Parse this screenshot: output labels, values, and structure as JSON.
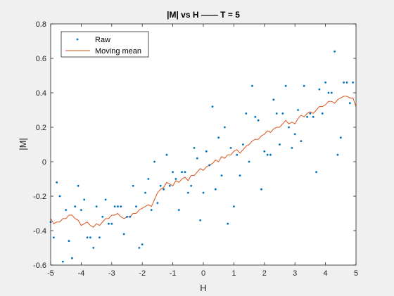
{
  "chart_data": {
    "type": "scatter",
    "title": "|M| vs H —— T = 5",
    "xlabel": "H",
    "ylabel": "|M|",
    "xlim": [
      -5,
      5
    ],
    "ylim": [
      -0.6,
      0.8
    ],
    "xticks": [
      -5,
      -4,
      -3,
      -2,
      -1,
      0,
      1,
      2,
      3,
      4,
      5
    ],
    "yticks": [
      -0.6,
      -0.4,
      -0.2,
      0,
      0.2,
      0.4,
      0.6,
      0.8
    ],
    "xtick_labels": [
      "-5",
      "-4",
      "-3",
      "-2",
      "-1",
      "0",
      "1",
      "2",
      "3",
      "4",
      "5"
    ],
    "ytick_labels": [
      "-0.6",
      "-0.4",
      "-0.2",
      "0",
      "0.2",
      "0.4",
      "0.6",
      "0.8"
    ],
    "grid": false,
    "legend_position": "top-left",
    "series": [
      {
        "name": "Raw",
        "style": "markers",
        "color": "#0072BD",
        "points": [
          [
            -5.0,
            -0.35
          ],
          [
            -4.9,
            -0.44
          ],
          [
            -4.8,
            -0.12
          ],
          [
            -4.7,
            -0.2
          ],
          [
            -4.6,
            -0.58
          ],
          [
            -4.5,
            -0.28
          ],
          [
            -4.4,
            -0.46
          ],
          [
            -4.3,
            -0.56
          ],
          [
            -4.2,
            -0.26
          ],
          [
            -4.1,
            -0.14
          ],
          [
            -4.0,
            -0.28
          ],
          [
            -3.9,
            -0.22
          ],
          [
            -3.8,
            -0.44
          ],
          [
            -3.7,
            -0.44
          ],
          [
            -3.6,
            -0.5
          ],
          [
            -3.5,
            -0.26
          ],
          [
            -3.4,
            -0.44
          ],
          [
            -3.3,
            -0.32
          ],
          [
            -3.2,
            -0.22
          ],
          [
            -3.1,
            -0.36
          ],
          [
            -3.0,
            -0.36
          ],
          [
            -2.9,
            -0.26
          ],
          [
            -2.8,
            -0.26
          ],
          [
            -2.7,
            -0.26
          ],
          [
            -2.6,
            -0.42
          ],
          [
            -2.5,
            -0.32
          ],
          [
            -2.4,
            -0.32
          ],
          [
            -2.3,
            -0.14
          ],
          [
            -2.2,
            -0.26
          ],
          [
            -2.1,
            -0.5
          ],
          [
            -2.0,
            -0.48
          ],
          [
            -1.9,
            -0.18
          ],
          [
            -1.8,
            -0.1
          ],
          [
            -1.7,
            -0.28
          ],
          [
            -1.6,
            0.0
          ],
          [
            -1.5,
            -0.24
          ],
          [
            -1.4,
            -0.14
          ],
          [
            -1.3,
            -0.16
          ],
          [
            -1.2,
            0.04
          ],
          [
            -1.1,
            -0.14
          ],
          [
            -1.0,
            -0.06
          ],
          [
            -0.9,
            -0.1
          ],
          [
            -0.8,
            -0.28
          ],
          [
            -0.7,
            -0.06
          ],
          [
            -0.6,
            -0.06
          ],
          [
            -0.5,
            -0.18
          ],
          [
            -0.4,
            -0.14
          ],
          [
            -0.3,
            0.08
          ],
          [
            -0.2,
            0.02
          ],
          [
            -0.1,
            -0.34
          ],
          [
            0.0,
            -0.18
          ],
          [
            0.1,
            0.06
          ],
          [
            0.2,
            -0.02
          ],
          [
            0.3,
            0.32
          ],
          [
            0.4,
            -0.16
          ],
          [
            0.5,
            0.14
          ],
          [
            0.6,
            -0.08
          ],
          [
            0.7,
            0.2
          ],
          [
            0.8,
            -0.36
          ],
          [
            0.9,
            0.08
          ],
          [
            1.0,
            -0.26
          ],
          [
            1.1,
            0.04
          ],
          [
            1.2,
            -0.08
          ],
          [
            1.3,
            0.1
          ],
          [
            1.4,
            0.28
          ],
          [
            1.5,
            0.0
          ],
          [
            1.6,
            0.44
          ],
          [
            1.7,
            0.26
          ],
          [
            1.8,
            0.24
          ],
          [
            1.9,
            -0.16
          ],
          [
            2.0,
            0.06
          ],
          [
            2.1,
            0.04
          ],
          [
            2.2,
            0.04
          ],
          [
            2.3,
            0.36
          ],
          [
            2.4,
            0.28
          ],
          [
            2.5,
            0.1
          ],
          [
            2.6,
            0.28
          ],
          [
            2.7,
            0.44
          ],
          [
            2.8,
            0.2
          ],
          [
            2.9,
            0.08
          ],
          [
            3.0,
            0.16
          ],
          [
            3.1,
            0.3
          ],
          [
            3.2,
            0.12
          ],
          [
            3.3,
            0.44
          ],
          [
            3.4,
            0.26
          ],
          [
            3.5,
            0.28
          ],
          [
            3.6,
            0.26
          ],
          [
            3.7,
            -0.06
          ],
          [
            3.8,
            0.42
          ],
          [
            3.9,
            0.28
          ],
          [
            4.0,
            0.46
          ],
          [
            4.1,
            0.4
          ],
          [
            4.2,
            0.4
          ],
          [
            4.3,
            0.64
          ],
          [
            4.4,
            0.04
          ],
          [
            4.5,
            0.14
          ],
          [
            4.6,
            0.46
          ],
          [
            4.7,
            0.46
          ],
          [
            4.8,
            0.34
          ],
          [
            4.9,
            0.46
          ]
        ]
      },
      {
        "name": "Moving mean",
        "style": "line",
        "color": "#D95319",
        "points": [
          [
            -5.0,
            -0.33
          ],
          [
            -4.9,
            -0.36
          ],
          [
            -4.8,
            -0.35
          ],
          [
            -4.7,
            -0.35
          ],
          [
            -4.6,
            -0.33
          ],
          [
            -4.5,
            -0.33
          ],
          [
            -4.4,
            -0.31
          ],
          [
            -4.3,
            -0.31
          ],
          [
            -4.2,
            -0.33
          ],
          [
            -4.1,
            -0.34
          ],
          [
            -4.0,
            -0.37
          ],
          [
            -3.9,
            -0.36
          ],
          [
            -3.8,
            -0.35
          ],
          [
            -3.7,
            -0.37
          ],
          [
            -3.6,
            -0.38
          ],
          [
            -3.5,
            -0.36
          ],
          [
            -3.4,
            -0.37
          ],
          [
            -3.3,
            -0.35
          ],
          [
            -3.2,
            -0.33
          ],
          [
            -3.1,
            -0.33
          ],
          [
            -3.0,
            -0.31
          ],
          [
            -2.9,
            -0.31
          ],
          [
            -2.8,
            -0.3
          ],
          [
            -2.7,
            -0.32
          ],
          [
            -2.6,
            -0.33
          ],
          [
            -2.5,
            -0.32
          ],
          [
            -2.4,
            -0.32
          ],
          [
            -2.3,
            -0.3
          ],
          [
            -2.2,
            -0.3
          ],
          [
            -2.1,
            -0.28
          ],
          [
            -2.0,
            -0.27
          ],
          [
            -1.9,
            -0.26
          ],
          [
            -1.8,
            -0.25
          ],
          [
            -1.7,
            -0.26
          ],
          [
            -1.6,
            -0.22
          ],
          [
            -1.5,
            -0.18
          ],
          [
            -1.4,
            -0.16
          ],
          [
            -1.3,
            -0.15
          ],
          [
            -1.2,
            -0.12
          ],
          [
            -1.1,
            -0.13
          ],
          [
            -1.0,
            -0.14
          ],
          [
            -0.9,
            -0.11
          ],
          [
            -0.8,
            -0.12
          ],
          [
            -0.7,
            -0.1
          ],
          [
            -0.6,
            -0.09
          ],
          [
            -0.5,
            -0.11
          ],
          [
            -0.4,
            -0.08
          ],
          [
            -0.3,
            -0.08
          ],
          [
            -0.2,
            -0.06
          ],
          [
            -0.1,
            -0.04
          ],
          [
            0.0,
            -0.05
          ],
          [
            0.1,
            -0.03
          ],
          [
            0.2,
            -0.02
          ],
          [
            0.3,
            -0.01
          ],
          [
            0.4,
            0.01
          ],
          [
            0.5,
            0.0
          ],
          [
            0.6,
            0.03
          ],
          [
            0.7,
            0.02
          ],
          [
            0.8,
            0.04
          ],
          [
            0.9,
            0.04
          ],
          [
            1.0,
            0.06
          ],
          [
            1.1,
            0.07
          ],
          [
            1.2,
            0.05
          ],
          [
            1.3,
            0.07
          ],
          [
            1.4,
            0.09
          ],
          [
            1.5,
            0.1
          ],
          [
            1.6,
            0.12
          ],
          [
            1.7,
            0.13
          ],
          [
            1.8,
            0.13
          ],
          [
            1.9,
            0.15
          ],
          [
            2.0,
            0.16
          ],
          [
            2.1,
            0.18
          ],
          [
            2.2,
            0.17
          ],
          [
            2.3,
            0.19
          ],
          [
            2.4,
            0.2
          ],
          [
            2.5,
            0.2
          ],
          [
            2.6,
            0.22
          ],
          [
            2.7,
            0.24
          ],
          [
            2.8,
            0.22
          ],
          [
            2.9,
            0.23
          ],
          [
            3.0,
            0.22
          ],
          [
            3.1,
            0.25
          ],
          [
            3.2,
            0.27
          ],
          [
            3.3,
            0.26
          ],
          [
            3.4,
            0.28
          ],
          [
            3.5,
            0.29
          ],
          [
            3.6,
            0.28
          ],
          [
            3.7,
            0.3
          ],
          [
            3.8,
            0.32
          ],
          [
            3.9,
            0.32
          ],
          [
            4.0,
            0.33
          ],
          [
            4.1,
            0.35
          ],
          [
            4.2,
            0.35
          ],
          [
            4.3,
            0.34
          ],
          [
            4.4,
            0.36
          ],
          [
            4.5,
            0.37
          ],
          [
            4.6,
            0.38
          ],
          [
            4.7,
            0.38
          ],
          [
            4.8,
            0.37
          ],
          [
            4.9,
            0.37
          ],
          [
            5.0,
            0.32
          ]
        ]
      }
    ]
  }
}
